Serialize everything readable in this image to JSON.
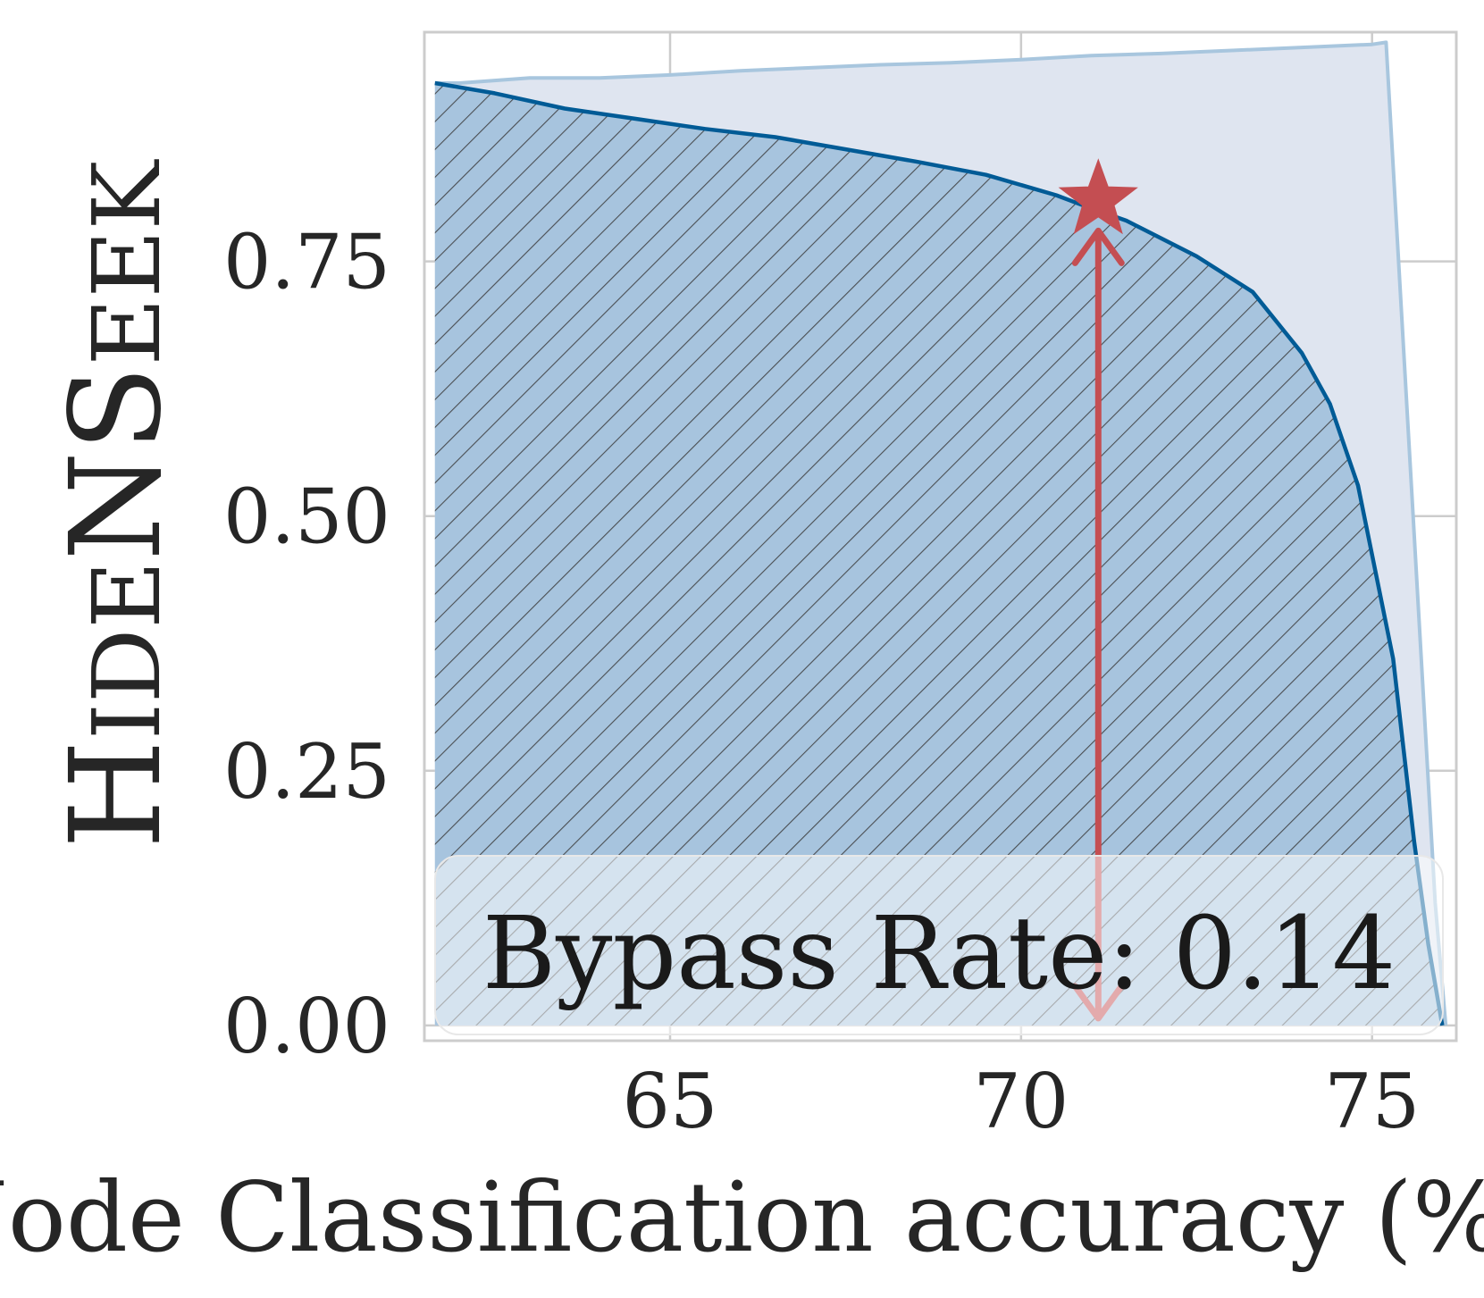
{
  "chart_data": {
    "type": "area",
    "xlabel": "Node Classification accuracy (%)",
    "ylabel": "HideNSeek",
    "xlim": [
      61.5,
      76.2
    ],
    "ylim": [
      -0.015,
      0.975
    ],
    "xticks": [
      "65",
      "70",
      "75"
    ],
    "xtick_values": [
      65,
      70,
      75
    ],
    "yticks": [
      "0.00",
      "0.25",
      "0.50",
      "0.75"
    ],
    "ytick_values": [
      0,
      0.25,
      0.5,
      0.75
    ],
    "grid": true,
    "series": [
      {
        "role": "upper-envelope",
        "color": "#a8c6de",
        "fill": "#dfe5f0",
        "x": [
          61.65,
          62,
          63,
          64,
          65,
          66,
          67,
          68,
          69,
          70,
          71,
          72,
          73,
          74,
          75,
          75.2,
          75.9,
          76.05
        ],
        "y": [
          0.925,
          0.925,
          0.93,
          0.93,
          0.933,
          0.937,
          0.94,
          0.943,
          0.945,
          0.948,
          0.952,
          0.954,
          0.957,
          0.96,
          0.963,
          0.965,
          0.12,
          0.0
        ]
      },
      {
        "role": "detection-curve",
        "color": "#005b96",
        "fill": "#a7c4de",
        "hatch": true,
        "x": [
          61.65,
          62.5,
          63.5,
          64.5,
          65.5,
          66.5,
          67.5,
          68.5,
          69.5,
          70.5,
          71,
          71.5,
          72.5,
          73.3,
          74,
          74.4,
          74.8,
          75.3,
          75.6,
          75.8,
          76.0
        ],
        "y": [
          0.925,
          0.915,
          0.9,
          0.89,
          0.88,
          0.872,
          0.86,
          0.848,
          0.835,
          0.815,
          0.802,
          0.79,
          0.755,
          0.72,
          0.66,
          0.61,
          0.53,
          0.36,
          0.18,
          0.08,
          0.0
        ]
      }
    ],
    "marker": {
      "shape": "star",
      "color": "#c44e52",
      "x": 71.1,
      "y": 0.81
    },
    "arrow": {
      "color": "#c44e52",
      "x": 71.1,
      "y_from": 0.0,
      "y_to": 0.78,
      "double_headed": true
    },
    "annotation": {
      "text": "Bypass Rate: 0.14",
      "position": "bottom"
    }
  }
}
